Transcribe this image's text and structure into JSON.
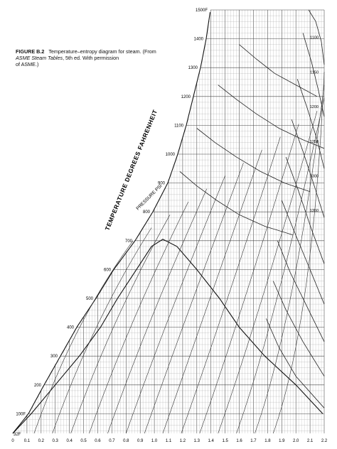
{
  "caption": {
    "label": "FIGURE B.2",
    "line1": "Temperature–entropy diagram for steam. (From",
    "source": "ASME Steam Tables",
    "line2": ", 5th ed. With permission",
    "line3": "of ASME.)"
  },
  "chart_data": {
    "type": "line",
    "title": "",
    "ylabel": "TEMPERATURE DEGREES FAHRENHEIT",
    "xlabel": "",
    "xlim": [
      0,
      2.2
    ],
    "ylim": [
      32,
      1500
    ],
    "x_ticks": [
      "0",
      "0.1",
      "0.2",
      "0.3",
      "0.4",
      "0.5",
      "0.6",
      "0.7",
      "0.8",
      "0.9",
      "1.0",
      "1.1",
      "1.2",
      "1.3",
      "1.4",
      "1.5",
      "1.6",
      "1.7",
      "1.8",
      "1.9",
      "2.0",
      "2.1",
      "2.2"
    ],
    "y_ticks": [
      {
        "label": "100F",
        "value": 100
      },
      {
        "label": "200",
        "value": 200
      },
      {
        "label": "300",
        "value": 300
      },
      {
        "label": "400",
        "value": 400
      },
      {
        "label": "500",
        "value": 500
      },
      {
        "label": "600",
        "value": 600
      },
      {
        "label": "700",
        "value": 700
      },
      {
        "label": "800",
        "value": 800
      },
      {
        "label": "900",
        "value": 900
      },
      {
        "label": "1000",
        "value": 1000
      },
      {
        "label": "1100",
        "value": 1100
      },
      {
        "label": "1200",
        "value": 1200
      },
      {
        "label": "1300",
        "value": 1300
      },
      {
        "label": "1400",
        "value": 1400
      },
      {
        "label": "1500F",
        "value": 1500
      }
    ],
    "bottom_label": "32F",
    "pressure_label": "PRESSURE PSI",
    "saturation_dome": {
      "x": [
        0,
        0.13,
        0.3,
        0.47,
        0.62,
        0.74,
        0.82,
        0.9,
        0.98,
        1.06,
        1.16,
        1.3,
        1.46,
        1.6,
        1.78,
        2.0,
        2.19
      ],
      "y": [
        32,
        100,
        200,
        300,
        400,
        500,
        560,
        620,
        680,
        705,
        680,
        600,
        500,
        400,
        300,
        200,
        100
      ]
    },
    "isobars": [
      {
        "name": "1",
        "x": [
          2.2,
          2.0,
          1.88,
          1.79
        ],
        "y": [
          120,
          230,
          330,
          430
        ]
      },
      {
        "name": "",
        "x": [
          2.2,
          2.05,
          1.93,
          1.84
        ],
        "y": [
          230,
          350,
          460,
          560
        ]
      },
      {
        "name": "",
        "x": [
          2.2,
          2.08,
          1.96,
          1.87
        ],
        "y": [
          350,
          470,
          590,
          700
        ]
      },
      {
        "name": "",
        "x": [
          2.2,
          2.1,
          1.99,
          1.9
        ],
        "y": [
          480,
          600,
          730,
          840
        ]
      },
      {
        "name": "",
        "x": [
          2.2,
          2.11,
          2.02,
          1.93
        ],
        "y": [
          620,
          740,
          870,
          990
        ]
      },
      {
        "name": "",
        "x": [
          2.2,
          2.13,
          2.05,
          1.97
        ],
        "y": [
          780,
          890,
          1010,
          1120
        ]
      },
      {
        "name": "",
        "x": [
          2.2,
          2.15,
          2.08,
          2.01
        ],
        "y": [
          950,
          1050,
          1160,
          1260
        ]
      },
      {
        "name": "",
        "x": [
          2.2,
          2.16,
          2.11,
          2.05
        ],
        "y": [
          1130,
          1220,
          1320,
          1420
        ]
      },
      {
        "name": "",
        "x": [
          2.2,
          2.18,
          2.14,
          2.09
        ],
        "y": [
          1310,
          1390,
          1460,
          1500
        ]
      },
      {
        "name": "",
        "x": [
          1.6,
          1.72,
          1.85,
          2.0,
          2.15
        ],
        "y": [
          1380,
          1330,
          1280,
          1240,
          1200
        ]
      },
      {
        "name": "",
        "x": [
          1.45,
          1.58,
          1.72,
          1.88,
          2.05,
          2.2
        ],
        "y": [
          1240,
          1190,
          1140,
          1090,
          1050,
          1020
        ]
      },
      {
        "name": "",
        "x": [
          1.3,
          1.43,
          1.58,
          1.75,
          1.92,
          2.1
        ],
        "y": [
          1090,
          1040,
          990,
          940,
          900,
          870
        ]
      },
      {
        "name": "",
        "x": [
          1.18,
          1.3,
          1.44,
          1.6,
          1.78,
          1.98
        ],
        "y": [
          940,
          890,
          840,
          790,
          750,
          720
        ]
      }
    ],
    "dome_labels": [
      "1100",
      "1150",
      "1200",
      "1250",
      "1300",
      "1350"
    ]
  }
}
